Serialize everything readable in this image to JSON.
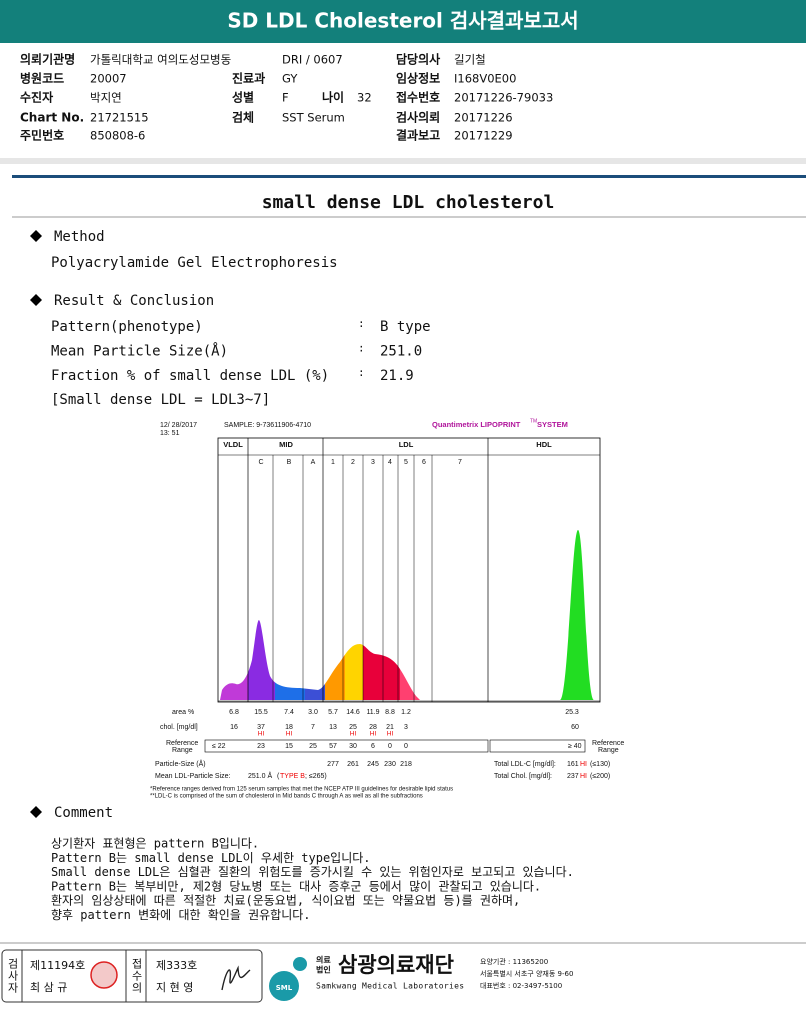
{
  "header": {
    "title": "SD LDL Cholesterol 검사결과보고서"
  },
  "info": {
    "left": [
      {
        "label": "의뢰기관명",
        "value": "가톨릭대학교 여의도성모병동"
      },
      {
        "label": "병원코드",
        "value": "20007"
      },
      {
        "label": "수진자",
        "value": "박지연"
      },
      {
        "label": "Chart No.",
        "value": "21721515"
      },
      {
        "label": "주민번호",
        "value": "850808-6"
      }
    ],
    "middle": [
      {
        "value": "DRI / 0607"
      },
      {
        "label": "진료과",
        "value": "GY"
      },
      {
        "label": "성별",
        "value": "F",
        "extra": {
          "label": "나이",
          "value": "32"
        }
      },
      {
        "label": "검체",
        "value": "SST Serum"
      }
    ],
    "right": [
      {
        "label": "담당의사",
        "value": "길기철"
      },
      {
        "label": "임상정보",
        "value": "I168V0E00"
      },
      {
        "label": "접수번호",
        "value": "20171226-79033"
      },
      {
        "label": "검사의뢰",
        "value": "20171226"
      },
      {
        "label": "결과보고",
        "value": "20171229"
      }
    ]
  },
  "section_title": "small dense LDL cholesterol",
  "method": {
    "heading": "Method",
    "text": "Polyacrylamide Gel Electrophoresis"
  },
  "result": {
    "heading": "Result & Conclusion",
    "separator": ":",
    "items": [
      {
        "label": "Pattern(phenotype)",
        "value": "B type"
      },
      {
        "label": "Mean Particle Size(Å)",
        "value": "251.0"
      },
      {
        "label": "Fraction % of small dense LDL (%)",
        "value": "21.9"
      }
    ],
    "note": "[Small dense LDL = LDL3~7]"
  },
  "lipoprint": {
    "date": "12/ 28/2017",
    "time": "13: 51",
    "sample": "SAMPLE:  9-73611906-4710",
    "brand": "Quantimetrix LIPOPRINT",
    "tm": "TM",
    "system": "SYSTEM",
    "groups": [
      "VLDL",
      "MID",
      "LDL",
      "HDL"
    ],
    "bands": [
      "C",
      "B",
      "A",
      "1",
      "2",
      "3",
      "4",
      "5",
      "6",
      "7"
    ],
    "row_labels": {
      "area": "area %",
      "chol": "chol. [mg/dl]",
      "reference": [
        "Reference",
        "Range"
      ],
      "particle": "Particle-Size (Å)",
      "mean": "Mean LDL-Particle Size:"
    },
    "area": [
      "6.8",
      "15.5",
      "7.4",
      "3.0",
      "5.7",
      "14.6",
      "11.9",
      "8.8",
      "1.2"
    ],
    "chol": [
      {
        "value": "16"
      },
      {
        "value": "37",
        "flag": "HI"
      },
      {
        "value": "18",
        "flag": "HI"
      },
      {
        "value": "7"
      },
      {
        "value": "13"
      },
      {
        "value": "25",
        "flag": "HI"
      },
      {
        "value": "28",
        "flag": "HI"
      },
      {
        "value": "21",
        "flag": "HI"
      },
      {
        "value": "3"
      }
    ],
    "reference": [
      "≤ 22",
      "23",
      "15",
      "25",
      "57",
      "30",
      "6",
      "0",
      "0"
    ],
    "particle_size": [
      "277",
      "261",
      "245",
      "230",
      "218"
    ],
    "mean": {
      "value": "251.0 Å",
      "open": "(",
      "type": "TYPE B",
      "rest": "; ≤265)"
    },
    "hdl": {
      "area": "25.3",
      "chol": "60",
      "reference": "≥ 40"
    },
    "totals": [
      {
        "label": "Total LDL-C [mg/dl]:",
        "value": "161",
        "flag": "HI",
        "range": "(≤130)"
      },
      {
        "label": "Total Chol. [mg/dl]:",
        "value": "237",
        "flag": "HI",
        "range": "(≤200)"
      }
    ],
    "footnotes": [
      "*Reference ranges derived from 125 serum samples that met the NCEP ATP III guidelines for desirable lipid status",
      "**LDL-C is comprised of the sum of cholesterol in Mid bands C through A as well as all the subfractions"
    ]
  },
  "comment": {
    "heading": "Comment",
    "lines": [
      "상기환자 표현형은 pattern B입니다.",
      "Pattern B는 small dense LDL이 우세한 type입니다.",
      "Small dense LDL은 심혈관 질환의 위험도를 증가시킬 수 있는 위험인자로 보고되고 있습니다.",
      "Pattern B는 복부비만, 제2형 당뇨병 또는 대사 증후군 등에서 많이 관찰되고 있습니다.",
      "환자의 임상상태에 따른 적절한 치료(운동요법, 식이요법 또는 약물요법 등)를 권하며,",
      "향후 pattern 변화에 대한 확인을 권유합니다."
    ]
  },
  "footer": {
    "examiner": {
      "role": "검사자",
      "number": "제11194호",
      "name": "최 삼 규"
    },
    "receiver": {
      "role": "접수의",
      "number": "제333호",
      "name": "지 현 영"
    },
    "logo": "SML",
    "org_type": [
      "의료",
      "법인"
    ],
    "org_name": "삼광의료재단",
    "org_english": "Samkwang Medical Laboratories",
    "contact": [
      "요양기관 : 11365200",
      "서울특별시 서초구 양재동 9-60",
      "대표번호 : 02-3497-5100"
    ]
  }
}
